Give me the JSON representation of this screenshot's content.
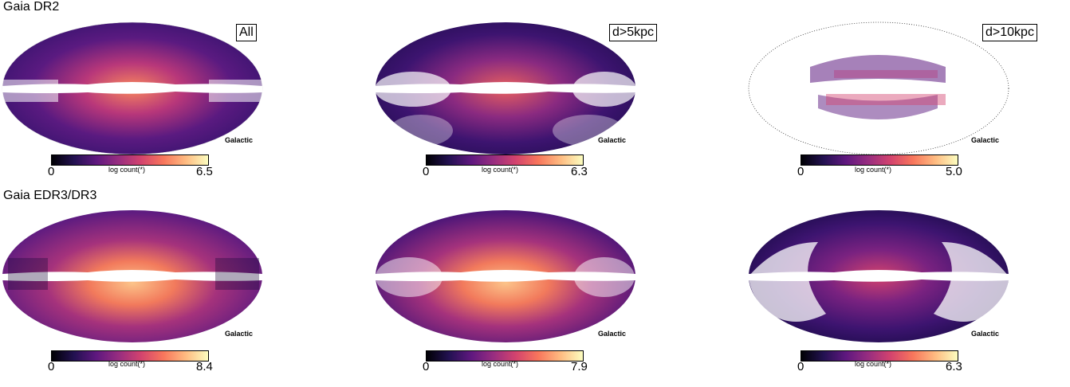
{
  "rows": [
    {
      "title": "Gaia DR2",
      "panels": [
        {
          "label": "All",
          "projection": "Galactic",
          "colorbar": {
            "min": "0",
            "max": "6.5",
            "label": "log count(*)"
          }
        },
        {
          "label": "d>5kpc",
          "projection": "Galactic",
          "colorbar": {
            "min": "0",
            "max": "6.3",
            "label": "log count(*)"
          }
        },
        {
          "label": "d>10kpc",
          "projection": "Galactic",
          "colorbar": {
            "min": "0",
            "max": "5.0",
            "label": "log count(*)"
          }
        }
      ]
    },
    {
      "title": "Gaia EDR3/DR3",
      "panels": [
        {
          "label": "",
          "projection": "Galactic",
          "colorbar": {
            "min": "0",
            "max": "8.4",
            "label": "log count(*)"
          }
        },
        {
          "label": "",
          "projection": "Galactic",
          "colorbar": {
            "min": "0",
            "max": "7.9",
            "label": "log count(*)"
          }
        },
        {
          "label": "",
          "projection": "Galactic",
          "colorbar": {
            "min": "0",
            "max": "6.3",
            "label": "log count(*)"
          }
        }
      ]
    }
  ],
  "colormap": [
    "#000004",
    "#231151",
    "#5f187f",
    "#982d80",
    "#d3436e",
    "#f8765c",
    "#febb81",
    "#fcfdbf"
  ]
}
